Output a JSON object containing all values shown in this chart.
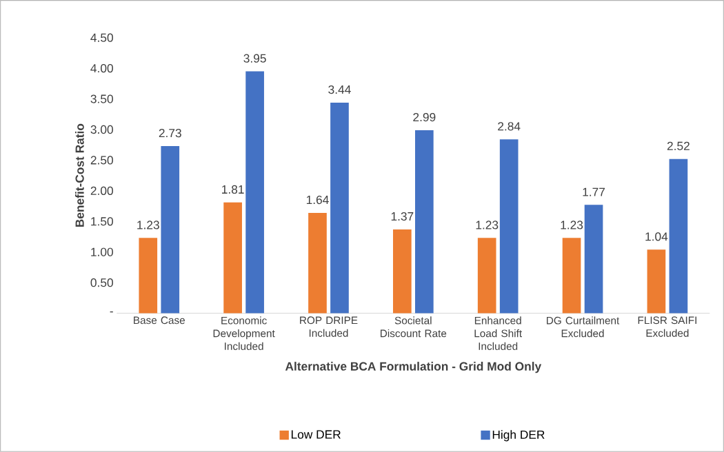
{
  "chart_data": {
    "type": "bar",
    "categories": [
      "Base Case",
      "Economic Development Included",
      "ROP DRIPE Included",
      "Societal Discount Rate",
      "Enhanced Load Shift Included",
      "DG Curtailment Excluded",
      "FLISR SAIFI Excluded"
    ],
    "series": [
      {
        "name": "Low DER",
        "color": "#ed7d31",
        "values": [
          1.23,
          1.81,
          1.64,
          1.37,
          1.23,
          1.23,
          1.04
        ]
      },
      {
        "name": "High DER",
        "color": "#4472c4",
        "values": [
          2.73,
          3.95,
          3.44,
          2.99,
          2.84,
          1.77,
          2.52
        ]
      }
    ],
    "xlabel": "Alternative BCA Formulation - Grid Mod Only",
    "ylabel": "Benefit-Cost Ratio",
    "ylim": [
      0,
      4.5
    ],
    "yticks": [
      {
        "value": 0,
        "label": "-"
      },
      {
        "value": 0.5,
        "label": "0.50"
      },
      {
        "value": 1,
        "label": "1.00"
      },
      {
        "value": 1.5,
        "label": "1.50"
      },
      {
        "value": 2,
        "label": "2.00"
      },
      {
        "value": 2.5,
        "label": "2.50"
      },
      {
        "value": 3,
        "label": "3.00"
      },
      {
        "value": 3.5,
        "label": "3.50"
      },
      {
        "value": 4,
        "label": "4.00"
      },
      {
        "value": 4.5,
        "label": "4.50"
      }
    ],
    "data_labels": true,
    "grid": false,
    "legend": "bottom"
  }
}
